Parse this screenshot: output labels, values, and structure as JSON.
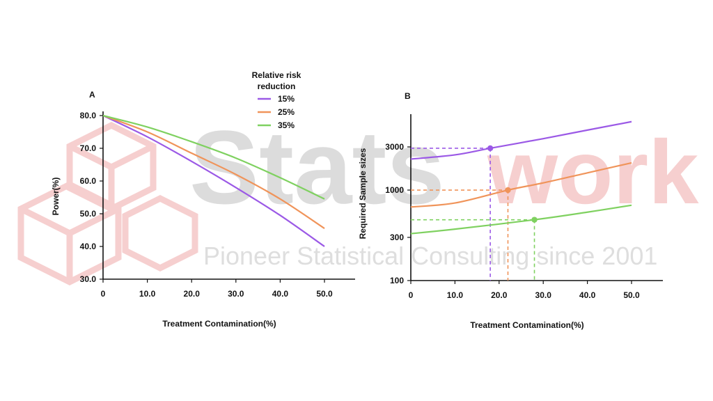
{
  "watermark": {
    "brand_part1": "Stats",
    "brand_part2": "work",
    "tagline": "Pioneer Statistical Consulting since 2001",
    "colors": {
      "grey": "#d9d9d9",
      "red": "#f6cfcf"
    }
  },
  "legend": {
    "title_line1": "Relative risk",
    "title_line2": "reduction",
    "placement": "top-center"
  },
  "colors": {
    "15%": "#9b59e6",
    "25%": "#f0945a",
    "35%": "#7fd160",
    "axis": "#111111"
  },
  "chart_data": [
    {
      "type": "line",
      "panel_label": "A",
      "xlabel": "Treatment Contamination(%)",
      "ylabel": "Power(%)",
      "xlim": [
        0,
        50
      ],
      "ylim": [
        30,
        80
      ],
      "x_ticks": [
        "0",
        "10.0",
        "20.0",
        "30.0",
        "40.0",
        "50.0"
      ],
      "y_ticks": [
        "30.0",
        "40.0",
        "50.0",
        "60.0",
        "70.0",
        "80.0"
      ],
      "series": [
        {
          "name": "15%",
          "x": [
            0,
            10,
            20,
            30,
            40,
            50
          ],
          "y": [
            80,
            73.5,
            66,
            58,
            49.5,
            40
          ]
        },
        {
          "name": "25%",
          "x": [
            0,
            10,
            20,
            30,
            40,
            50
          ],
          "y": [
            80,
            75,
            68.5,
            62,
            54.5,
            45.5
          ]
        },
        {
          "name": "35%",
          "x": [
            0,
            10,
            20,
            30,
            40,
            50
          ],
          "y": [
            80,
            76.5,
            72,
            67,
            61,
            54.5
          ]
        }
      ]
    },
    {
      "type": "line",
      "panel_label": "B",
      "xlabel": "Treatment Contamination(%)",
      "ylabel": "Required Sample sizes",
      "xlim": [
        0,
        50
      ],
      "ylim": [
        100,
        6000
      ],
      "y_scale": "log",
      "x_ticks": [
        "0",
        "10.0",
        "20.0",
        "30.0",
        "40.0",
        "50.0"
      ],
      "y_ticks": [
        "100",
        "300",
        "1000",
        "3000"
      ],
      "y_tick_values": [
        100,
        300,
        1000,
        3000
      ],
      "series": [
        {
          "name": "15%",
          "x": [
            0,
            10,
            18,
            30,
            40,
            50
          ],
          "y": [
            2200,
            2450,
            2900,
            3700,
            4600,
            5700
          ]
        },
        {
          "name": "25%",
          "x": [
            0,
            10,
            22,
            30,
            40,
            50
          ],
          "y": [
            650,
            720,
            1000,
            1200,
            1550,
            2000
          ]
        },
        {
          "name": "35%",
          "x": [
            0,
            10,
            28,
            40,
            50
          ],
          "y": [
            330,
            370,
            470,
            570,
            680
          ]
        }
      ],
      "markers": [
        {
          "series": "15%",
          "x": 18,
          "y": 2900
        },
        {
          "series": "25%",
          "x": 22,
          "y": 1000
        },
        {
          "series": "35%",
          "x": 28,
          "y": 470
        }
      ]
    }
  ]
}
